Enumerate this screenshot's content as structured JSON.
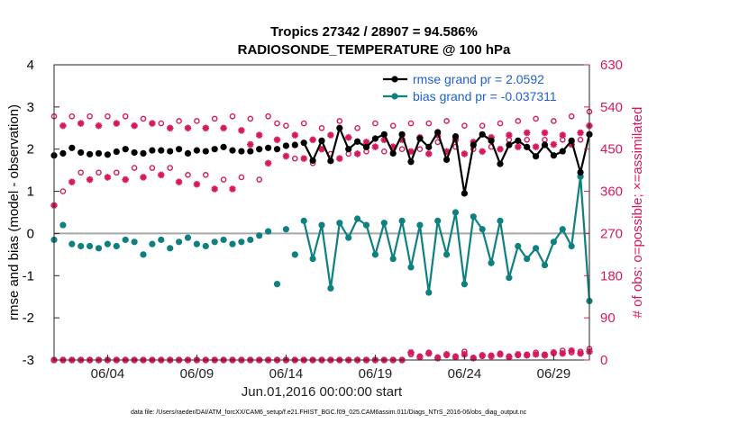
{
  "chart_data": {
    "type": "line",
    "title": "Tropics 27342 / 28907 = 94.586%",
    "subtitle": "RADIOSONDE_TEMPERATURE @ 100 hPa",
    "xlabel": "Jun.01,2016 00:00:00 start",
    "ylabel": "rmse and bias (model - observation)",
    "ylabel_right": "# of obs: o=possible; ×=assimilated",
    "footnote": "data file: /Users/raeder/DAI/ATM_forcXX/CAM6_setup/f.e21.FHIST_BGC.f09_025.CAM6assim.011/Diags_NTrS_2016-06/obs_diag_output.nc",
    "xlim": [
      0.5,
      30.5
    ],
    "ylim": [
      -3,
      4
    ],
    "ylim_right": [
      0,
      630
    ],
    "x_ticks": [
      3.5,
      8.5,
      13.5,
      18.5,
      23.5,
      28.5
    ],
    "x_tick_labels": [
      "06/04",
      "06/09",
      "06/14",
      "06/19",
      "06/24",
      "06/29"
    ],
    "y_ticks": [
      -3,
      -2,
      -1,
      0,
      1,
      2,
      3,
      4
    ],
    "y_tick_labels": [
      "-3",
      "-2",
      "-1",
      "0",
      "1",
      "2",
      "3",
      "4"
    ],
    "y_right_ticks": [
      0,
      90,
      180,
      270,
      360,
      450,
      540,
      630
    ],
    "y_right_tick_labels": [
      "0",
      "90",
      "180",
      "270",
      "360",
      "450",
      "540",
      "630"
    ],
    "legend": {
      "location": "top-right",
      "entries": [
        "rmse grand pr = 2.0592",
        "bias grand pr = -0.037311"
      ]
    },
    "colors": {
      "rmse": "#000000",
      "bias": "#0f8080",
      "obs": "#d6195f",
      "zero_line": "#a8a8a8",
      "legend_text": "#1f5fd6"
    },
    "series": [
      {
        "name": "rmse",
        "x": [
          0.5,
          1,
          1.5,
          2,
          2.5,
          3,
          3.5,
          4,
          4.5,
          5,
          5.5,
          6,
          6.5,
          7,
          7.5,
          8,
          8.5,
          9,
          9.5,
          10,
          10.5,
          11,
          11.5,
          12,
          12.5,
          13,
          13.5,
          14,
          14.5,
          15,
          15.5,
          16,
          16.5,
          17,
          17.5,
          18,
          18.5,
          19,
          19.5,
          20,
          20.5,
          21,
          21.5,
          22,
          22.5,
          23,
          23.5,
          24,
          24.5,
          25,
          25.5,
          26,
          26.5,
          27,
          27.5,
          28,
          28.5,
          29,
          29.5,
          30,
          30.5
        ],
        "values": [
          1.85,
          1.9,
          2.03,
          1.92,
          1.88,
          1.9,
          1.87,
          1.94,
          2.0,
          1.92,
          1.9,
          1.97,
          1.97,
          1.95,
          2.0,
          1.9,
          1.97,
          1.95,
          2.0,
          2.05,
          1.97,
          1.95,
          1.95,
          2.0,
          2.03,
          2.0,
          2.08,
          2.1,
          2.15,
          1.73,
          2.2,
          1.72,
          2.5,
          2.0,
          2.18,
          2.05,
          2.25,
          2.35,
          1.9,
          2.35,
          1.7,
          2.25,
          2.05,
          2.4,
          1.75,
          2.3,
          0.95,
          2.1,
          2.35,
          2.2,
          1.65,
          2.1,
          2.2,
          2.05,
          1.83,
          2.1,
          1.85,
          1.95,
          2.2,
          1.45,
          2.35
        ],
        "labels": {
          "legend": "rmse grand pr = 2.0592"
        }
      },
      {
        "name": "bias",
        "x": [
          0.5,
          1,
          1.5,
          2,
          2.5,
          3,
          3.5,
          4,
          4.5,
          5,
          5.5,
          6,
          6.5,
          7,
          7.5,
          8,
          8.5,
          9,
          9.5,
          10,
          10.5,
          11,
          11.5,
          12,
          12.5,
          13,
          13.5,
          14,
          14.5,
          15,
          15.5,
          16,
          16.5,
          17,
          17.5,
          18,
          18.5,
          19,
          19.5,
          20,
          20.5,
          21,
          21.5,
          22,
          22.5,
          23,
          23.5,
          24,
          24.5,
          25,
          25.5,
          26,
          26.5,
          27,
          27.5,
          28,
          28.5,
          29,
          29.5,
          30,
          30.5
        ],
        "values": [
          -0.15,
          0.2,
          -0.25,
          -0.3,
          -0.3,
          -0.35,
          -0.25,
          -0.3,
          -0.15,
          -0.2,
          -0.5,
          -0.25,
          -0.15,
          -0.35,
          -0.2,
          -0.1,
          -0.25,
          -0.3,
          -0.2,
          -0.15,
          -0.25,
          -0.2,
          -0.15,
          -0.05,
          0.05,
          -1.2,
          0.1,
          -0.5,
          0.3,
          -0.6,
          0.2,
          -1.3,
          0.25,
          -0.1,
          0.35,
          0.2,
          -0.5,
          0.25,
          -0.6,
          0.3,
          -0.8,
          0.2,
          -1.4,
          0.3,
          -0.5,
          0.5,
          -1.2,
          0.4,
          0.1,
          -0.7,
          0.3,
          -1.05,
          -0.3,
          -0.6,
          -0.35,
          -0.75,
          -0.2,
          0.1,
          -0.3,
          1.35,
          -1.6
        ]
      },
      {
        "name": "obs_possible",
        "x": [
          0.5,
          1,
          1.5,
          2,
          2.5,
          3,
          3.5,
          4,
          4.5,
          5,
          5.5,
          6,
          6.5,
          7,
          7.5,
          8,
          8.5,
          9,
          9.5,
          10,
          10.5,
          11,
          11.5,
          12,
          12.5,
          13,
          13.5,
          14,
          14.5,
          15,
          15.5,
          16,
          16.5,
          17,
          17.5,
          18,
          18.5,
          19,
          19.5,
          20,
          20.5,
          21,
          21.5,
          22,
          22.5,
          23,
          23.5,
          24,
          24.5,
          25,
          25.5,
          26,
          26.5,
          27,
          27.5,
          28,
          28.5,
          29,
          29.5,
          30,
          30.5
        ],
        "values": [
          520,
          360,
          520,
          400,
          520,
          400,
          520,
          400,
          520,
          410,
          515,
          410,
          505,
          410,
          510,
          395,
          510,
          395,
          515,
          385,
          520,
          390,
          515,
          385,
          520,
          505,
          500,
          430,
          505,
          420,
          495,
          440,
          510,
          440,
          495,
          445,
          505,
          445,
          500,
          450,
          505,
          450,
          505,
          465,
          510,
          455,
          500,
          450,
          500,
          455,
          505,
          470,
          510,
          470,
          515,
          470,
          510,
          470,
          520,
          470,
          530
        ],
        "value_unit": "right axis (count)"
      },
      {
        "name": "obs_assimilated",
        "x": [
          0.5,
          1,
          1.5,
          2,
          2.5,
          3,
          3.5,
          4,
          4.5,
          5,
          5.5,
          6,
          6.5,
          7,
          7.5,
          8,
          8.5,
          9,
          9.5,
          10,
          10.5,
          11,
          11.5,
          12,
          12.5,
          13,
          13.5,
          14,
          14.5,
          15,
          15.5,
          16,
          16.5,
          17,
          17.5,
          18,
          18.5,
          19,
          19.5,
          20,
          20.5,
          21,
          21.5,
          22,
          22.5,
          23,
          23.5,
          24,
          24.5,
          25,
          25.5,
          26,
          26.5,
          27,
          27.5,
          28,
          28.5,
          29,
          29.5,
          30,
          30.5
        ],
        "values": [
          330,
          500,
          380,
          505,
          385,
          500,
          390,
          505,
          385,
          500,
          390,
          505,
          395,
          495,
          380,
          495,
          375,
          495,
          365,
          495,
          365,
          490,
          460,
          480,
          420,
          470,
          435,
          480,
          430,
          470,
          450,
          480,
          430,
          475,
          440,
          465,
          455,
          470,
          455,
          470,
          445,
          475,
          440,
          480,
          445,
          470,
          440,
          465,
          445,
          475,
          450,
          480,
          455,
          485,
          455,
          485,
          460,
          480,
          460,
          485,
          500
        ],
        "value_unit": "right axis (count)"
      },
      {
        "name": "obs_possible_bottom",
        "x": [
          0.5,
          1,
          1.5,
          2,
          2.5,
          3,
          3.5,
          4,
          4.5,
          5,
          5.5,
          6,
          6.5,
          7,
          7.5,
          8,
          8.5,
          9,
          9.5,
          10,
          10.5,
          11,
          11.5,
          12,
          12.5,
          13,
          13.5,
          14,
          14.5,
          15,
          15.5,
          16,
          16.5,
          17,
          17.5,
          18,
          18.5,
          19,
          19.5,
          20,
          20.5,
          21,
          21.5,
          22,
          22.5,
          23,
          23.5,
          24,
          24.5,
          25,
          25.5,
          26,
          26.5,
          27,
          27.5,
          28,
          28.5,
          29,
          29.5,
          30,
          30.5
        ],
        "values": [
          0,
          0,
          0,
          0,
          0,
          0,
          0,
          0,
          0,
          0,
          0,
          0,
          0,
          0,
          0,
          0,
          0,
          0,
          0,
          0,
          0,
          0,
          0,
          0,
          0,
          0,
          0,
          0,
          0,
          0,
          0,
          0,
          0,
          0,
          0,
          0,
          0,
          0,
          0,
          0,
          12,
          8,
          16,
          6,
          10,
          8,
          18,
          5,
          8,
          10,
          14,
          8,
          10,
          12,
          16,
          12,
          14,
          20,
          16,
          18,
          24
        ],
        "value_unit": "right axis (count)"
      },
      {
        "name": "obs_assimilated_bottom",
        "x": [
          0.5,
          1,
          1.5,
          2,
          2.5,
          3,
          3.5,
          4,
          4.5,
          5,
          5.5,
          6,
          6.5,
          7,
          7.5,
          8,
          8.5,
          9,
          9.5,
          10,
          10.5,
          11,
          11.5,
          12,
          12.5,
          13,
          13.5,
          14,
          14.5,
          15,
          15.5,
          16,
          16.5,
          17,
          17.5,
          18,
          18.5,
          19,
          19.5,
          20,
          20.5,
          21,
          21.5,
          22,
          22.5,
          23,
          23.5,
          24,
          24.5,
          25,
          25.5,
          26,
          26.5,
          27,
          27.5,
          28,
          28.5,
          29,
          29.5,
          30,
          30.5
        ],
        "values": [
          0,
          0,
          0,
          0,
          0,
          0,
          0,
          0,
          0,
          0,
          0,
          0,
          0,
          0,
          0,
          0,
          0,
          0,
          0,
          0,
          0,
          0,
          0,
          0,
          0,
          0,
          0,
          0,
          0,
          0,
          0,
          0,
          0,
          0,
          0,
          0,
          0,
          0,
          0,
          0,
          16,
          6,
          14,
          4,
          12,
          6,
          12,
          4,
          10,
          8,
          12,
          6,
          12,
          10,
          12,
          10,
          16,
          14,
          20,
          14,
          18
        ],
        "value_unit": "right axis (count)"
      }
    ]
  }
}
